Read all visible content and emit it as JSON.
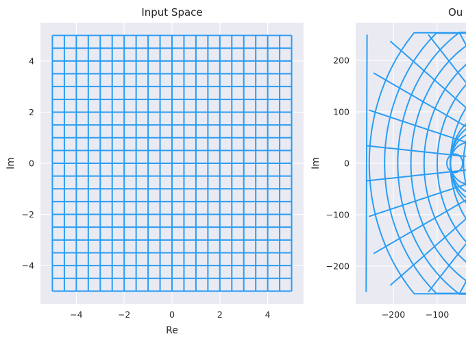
{
  "chart_data": [
    {
      "type": "line",
      "title": "Input Space",
      "xlabel": "Re",
      "ylabel": "Im",
      "xlim": [
        -5.5,
        5.5
      ],
      "ylim": [
        -5.5,
        5.5
      ],
      "xticks": [
        -4,
        -2,
        0,
        2,
        4
      ],
      "yticks": [
        -4,
        -2,
        0,
        2,
        4
      ],
      "xtick_labels": [
        "−4",
        "−2",
        "0",
        "2",
        "4"
      ],
      "ytick_labels": [
        "−4",
        "−2",
        "0",
        "2",
        "4"
      ],
      "grid": true,
      "series": [
        {
          "description": "grid lines at x = constant, y from -5 to 5",
          "x": [
            -5,
            -4.5,
            -4,
            -3.5,
            -3,
            -2.5,
            -2,
            -1.5,
            -1,
            -0.5,
            0,
            0.5,
            1,
            1.5,
            2,
            2.5,
            3,
            3.5,
            4,
            4.5,
            5
          ],
          "y_range": [
            -5,
            5
          ]
        },
        {
          "description": "grid lines at y = constant, x from -5 to 5",
          "y": [
            -5,
            -4.5,
            -4,
            -3.5,
            -3,
            -2.5,
            -2,
            -1.5,
            -1,
            -0.5,
            0,
            0.5,
            1,
            1.5,
            2,
            2.5,
            3,
            3.5,
            4,
            4.5,
            5
          ],
          "x_range": [
            -5,
            5
          ]
        }
      ],
      "color": "#2a9df4"
    },
    {
      "type": "line",
      "title": "Ou",
      "xlabel": "",
      "ylabel": "Im",
      "xlim": [
        -275,
        150
      ],
      "ylim": [
        -275,
        275
      ],
      "xticks": [
        -200,
        -100
      ],
      "yticks": [
        -200,
        -100,
        0,
        100,
        200
      ],
      "xtick_labels": [
        "−200",
        "−100"
      ],
      "ytick_labels": [
        "−200",
        "−100",
        "0",
        "100",
        "200"
      ],
      "grid": true,
      "series": [
        {
          "description": "mapped grid curves (radial and circular arcs)"
        }
      ],
      "color": "#2a9df4"
    }
  ]
}
